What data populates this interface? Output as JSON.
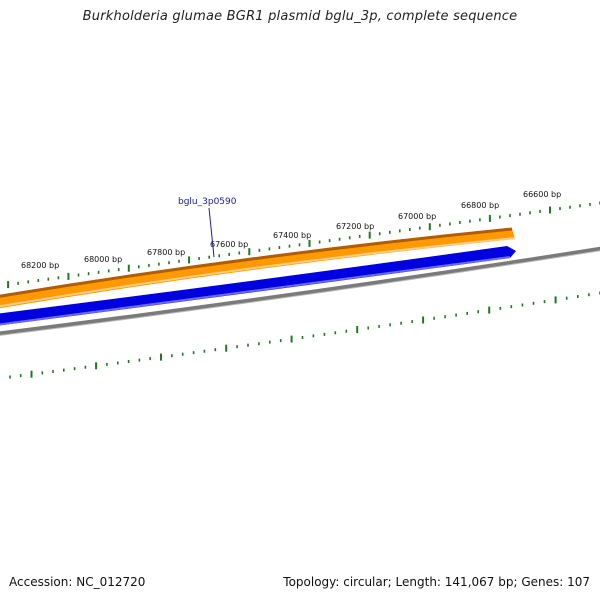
{
  "title": "Burkholderia glumae BGR1 plasmid bglu_3p, complete sequence",
  "accession_text": "Accession: NC_012720",
  "summary_text": "Topology: circular; Length: 141,067 bp; Genes: 107",
  "gene_label": "bglu_3p0590",
  "ruler_labels": [
    "68200 bp",
    "68000 bp",
    "67800 bp",
    "67600 bp",
    "67400 bp",
    "67200 bp",
    "67000 bp",
    "66800 bp",
    "66600 bp"
  ],
  "colors": {
    "ruler_tick": "#1f7a1f",
    "orange_feature": "#ff9900",
    "orange_edge": "#b35c00",
    "blue_feature": "#0000e0",
    "backbone": "#7a7a7a",
    "gene_label": "#1a1aa6"
  }
}
